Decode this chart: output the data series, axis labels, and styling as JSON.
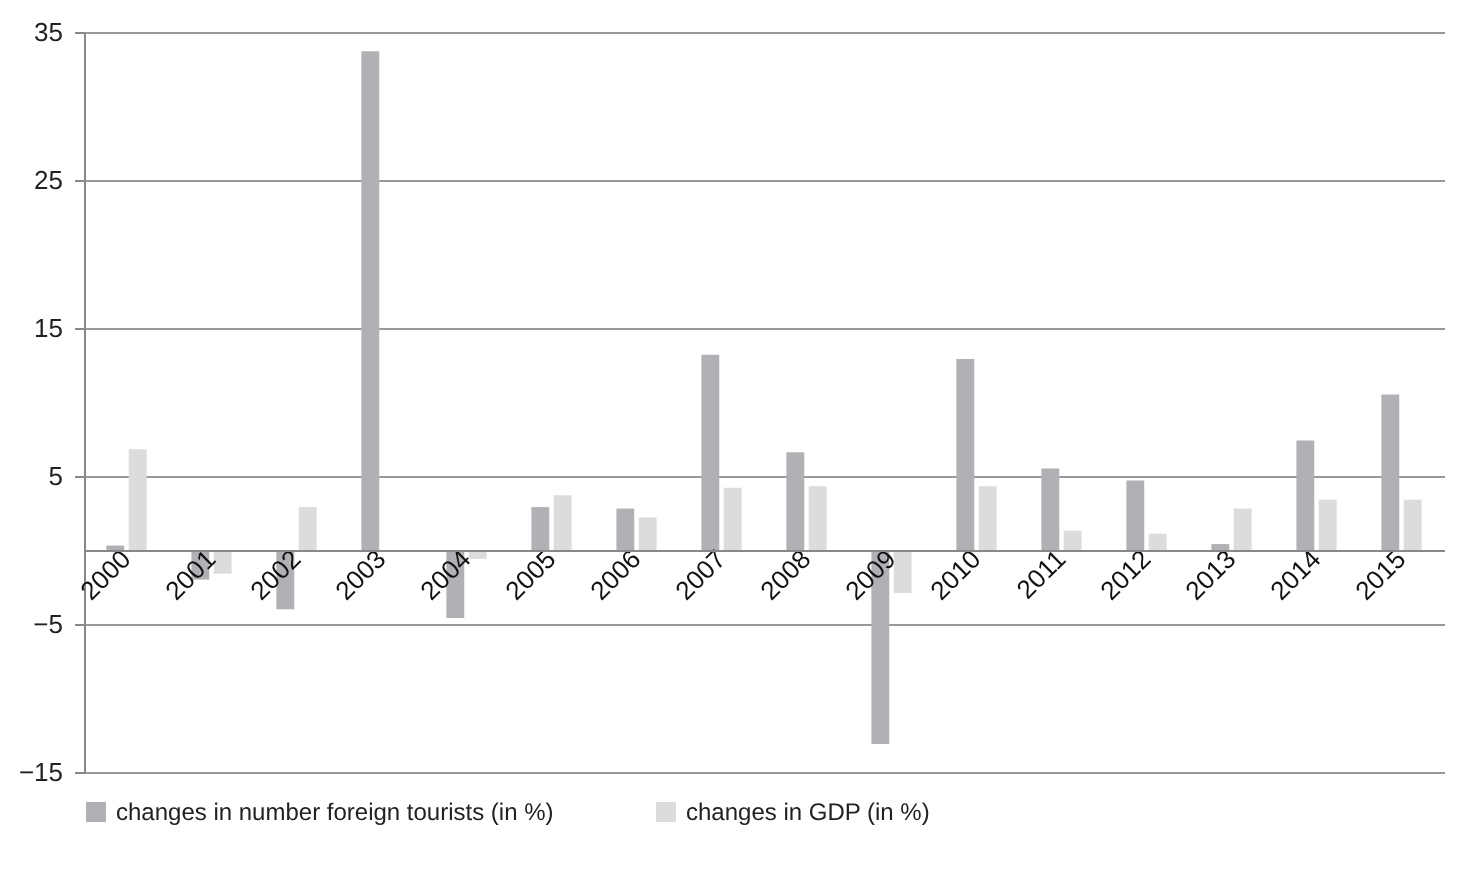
{
  "chart_data": {
    "type": "bar",
    "categories": [
      "2000",
      "2001",
      "2002",
      "2003",
      "2004",
      "2005",
      "2006",
      "2007",
      "2008",
      "2009",
      "2010",
      "2011",
      "2012",
      "2013",
      "2014",
      "2015"
    ],
    "series": [
      {
        "name": "changes in number foreign tourists (in %)",
        "color": "#b0b1b5",
        "values": [
          0.3,
          -2.0,
          -4.0,
          33.7,
          -4.6,
          2.9,
          2.8,
          13.2,
          6.6,
          -13.1,
          12.9,
          5.5,
          4.7,
          0.4,
          7.4,
          10.5
        ]
      },
      {
        "name": "changes in GDP (in %)",
        "color": "#dcdcde",
        "values": [
          6.8,
          -1.6,
          2.9,
          null,
          -0.6,
          3.7,
          2.2,
          4.2,
          4.3,
          -2.9,
          4.3,
          1.3,
          1.1,
          2.8,
          3.4,
          3.4
        ]
      }
    ],
    "ylim": [
      -15,
      35
    ],
    "yticks": [
      -15,
      -5,
      5,
      15,
      25,
      35
    ],
    "grid": "y",
    "legend": "bottom"
  }
}
